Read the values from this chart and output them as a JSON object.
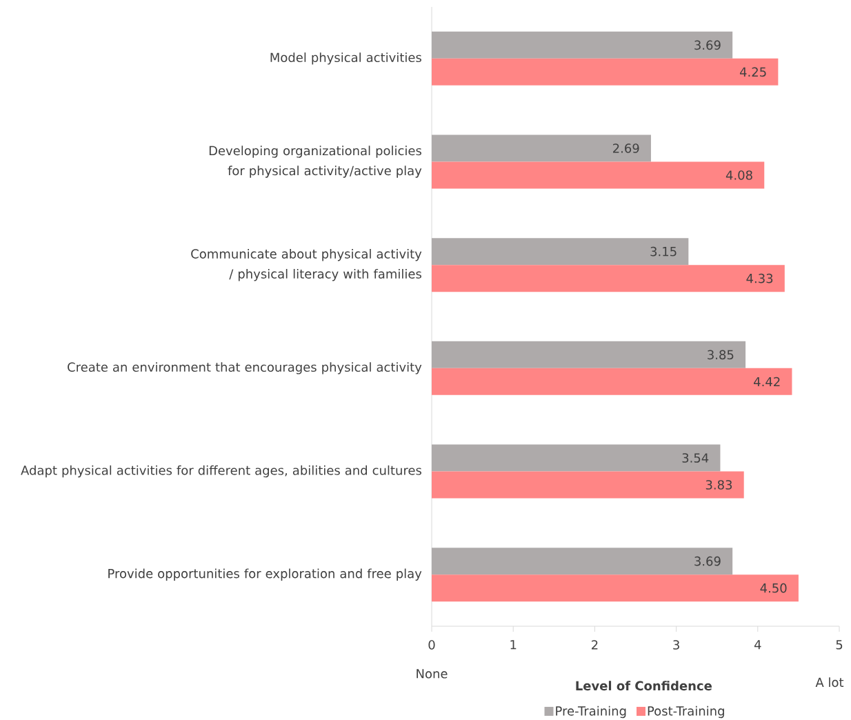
{
  "chart_data": {
    "type": "bar",
    "orientation": "horizontal",
    "categories": [
      "Model physical activities",
      "Developing organizational policies for physical activity/active play",
      "Communicate about physical activity / physical literacy with families",
      "Create an environment that encourages physical activity",
      "Adapt physical activities for different ages, abilities and cultures",
      "Provide opportunities for exploration and free play"
    ],
    "series": [
      {
        "name": "Pre-Training",
        "color": "#aeaaaa",
        "values": [
          3.69,
          2.69,
          3.15,
          3.85,
          3.54,
          3.69
        ],
        "value_labels": [
          "3.69",
          "2.69",
          "3.15",
          "3.85",
          "3.54",
          "3.69"
        ]
      },
      {
        "name": "Post-Training",
        "color": "#ff8585",
        "values": [
          4.25,
          4.08,
          4.33,
          4.42,
          3.83,
          4.5
        ],
        "value_labels": [
          "4.25",
          "4.08",
          "4.33",
          "4.42",
          "3.83",
          "4.50"
        ]
      }
    ],
    "xlim": [
      0,
      5
    ],
    "xticks": [
      0,
      1,
      2,
      3,
      4,
      5
    ],
    "xlabel": "Level of Confidence",
    "annotations": [
      "None",
      "A lot"
    ],
    "legend": "bottom",
    "grid": false
  }
}
